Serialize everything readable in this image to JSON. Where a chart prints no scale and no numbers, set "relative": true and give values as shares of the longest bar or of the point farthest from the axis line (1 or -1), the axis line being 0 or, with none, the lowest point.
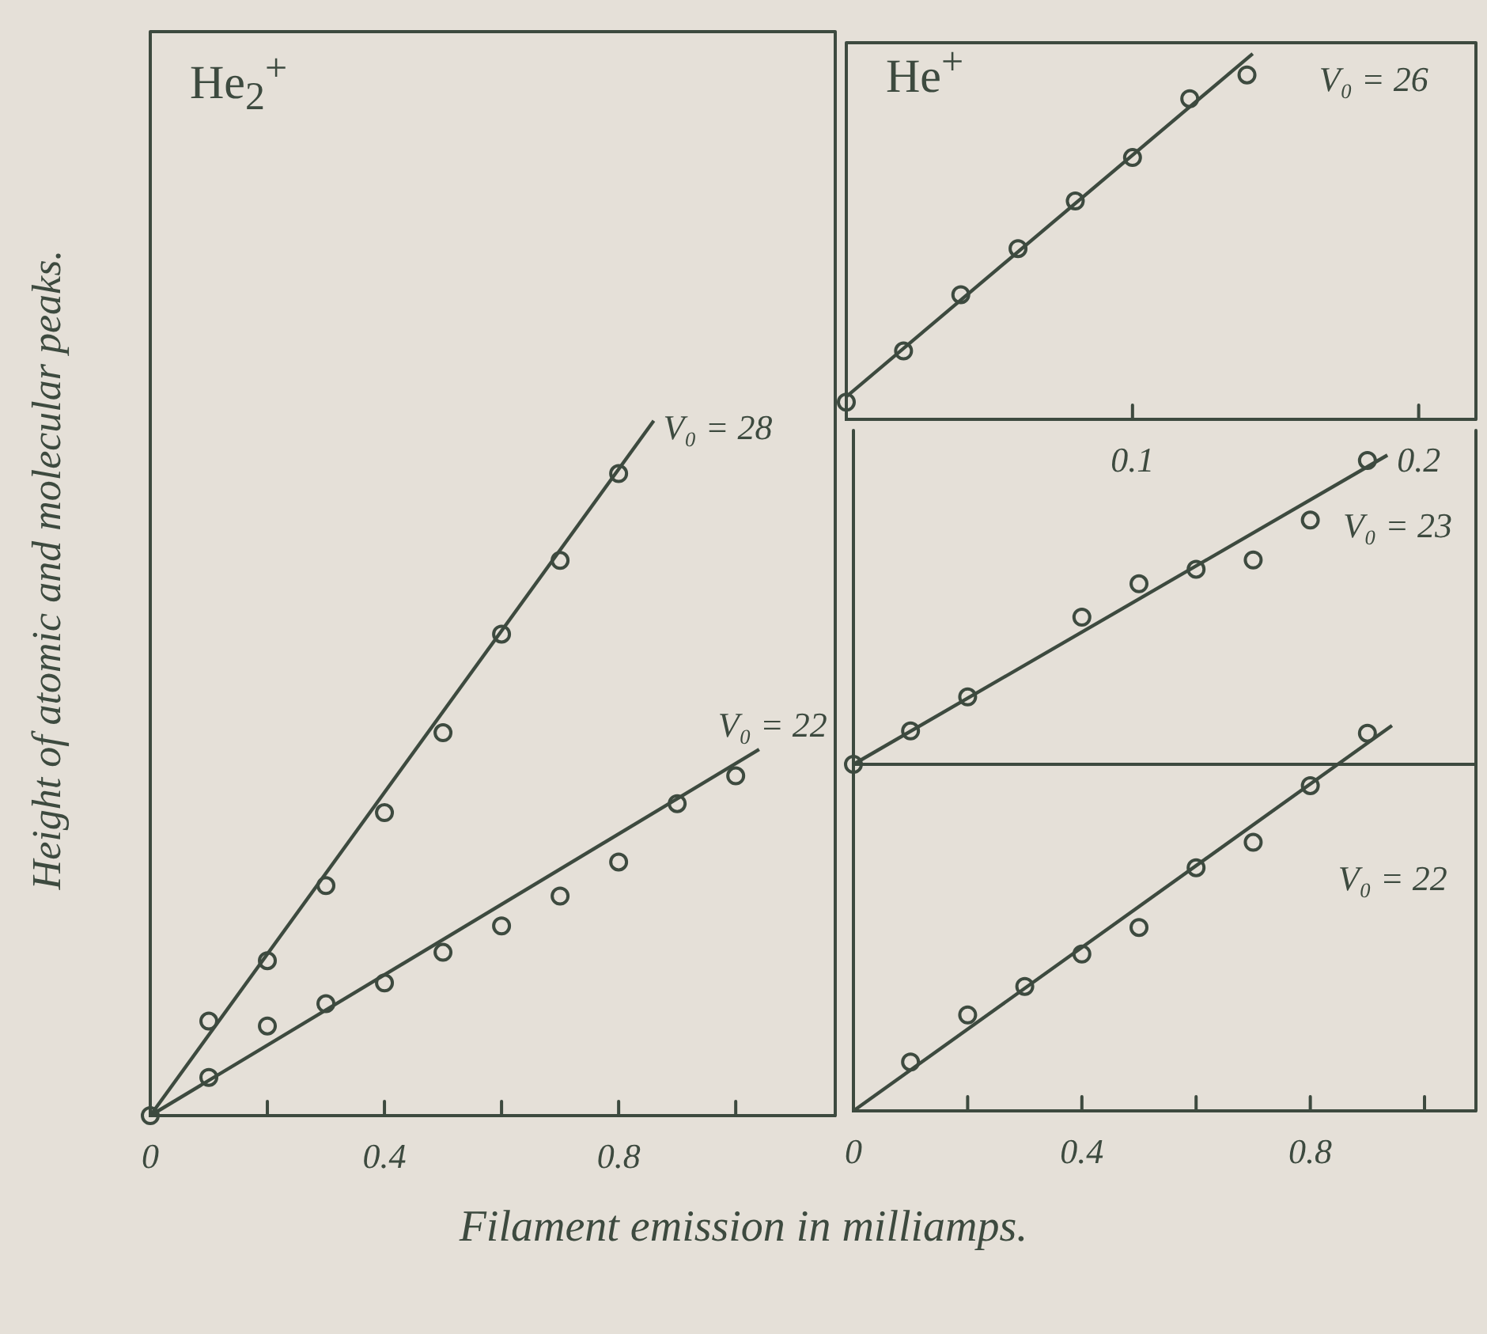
{
  "chart_data": [
    {
      "type": "scatter",
      "title": "He$_{2}$$^{+}$",
      "xlabel": "Filament emission in milliamps.",
      "ylabel": "Height of atomic and molecular peaks.",
      "relative": true,
      "marker": "circle",
      "xlim": [
        0,
        1.17
      ],
      "xticks": [
        0,
        {
          "value": 0.2,
          "label": null
        },
        0.4,
        {
          "value": 0.6,
          "label": null
        },
        0.8,
        {
          "value": 1.0,
          "label": null
        }
      ],
      "series": [
        {
          "color": "#3d4a3f",
          "x": [
            0,
            0.1,
            0.2,
            0.3,
            0.4,
            0.5,
            0.6,
            0.7,
            0.8
          ],
          "values": [
            0,
            0.136,
            0.223,
            0.331,
            0.436,
            0.551,
            0.693,
            0.799,
            0.924
          ]
        },
        {
          "name": "V₀ = 28",
          "type": "line",
          "marker": "none",
          "color": "#3d4a3f",
          "x": [
            0,
            0.86
          ],
          "values": [
            0,
            1
          ]
        },
        {
          "color": "#3d4a3f",
          "x": [
            0.1,
            0.2,
            0.3,
            0.4,
            0.5,
            0.6,
            0.7,
            0.8,
            0.9,
            1.0
          ],
          "values": [
            0.055,
            0.129,
            0.161,
            0.191,
            0.235,
            0.273,
            0.316,
            0.365,
            0.449,
            0.489
          ]
        },
        {
          "name": "V₀ = 22",
          "type": "line",
          "marker": "none",
          "color": "#3d4a3f",
          "x": [
            0,
            1.04
          ],
          "values": [
            0,
            0.527
          ]
        }
      ]
    },
    {
      "type": "scatter",
      "title": "He$^{+}$",
      "relative": true,
      "marker": "circle",
      "xlim": [
        0,
        0.22
      ],
      "xticks": [
        0.1,
        0.2
      ],
      "series": [
        {
          "color": "#3d4a3f",
          "x": [
            0,
            0.02,
            0.04,
            0.06,
            0.08,
            0.1,
            0.12,
            0.14
          ],
          "values": [
            0.047,
            0.187,
            0.341,
            0.467,
            0.597,
            0.716,
            0.877,
            0.942
          ]
        },
        {
          "name": "V₀ = 26",
          "type": "line",
          "marker": "none",
          "color": "#3d4a3f",
          "x": [
            0,
            0.142
          ],
          "values": [
            0.062,
            1
          ]
        }
      ]
    },
    {
      "type": "scatter",
      "relative": true,
      "marker": "circle",
      "xlim": [
        0,
        1.09
      ],
      "tick_labels": false,
      "xticks": [
        0,
        0.4,
        0.8
      ],
      "series": [
        {
          "color": "#3d4a3f",
          "x": [
            0,
            0.1,
            0.2,
            0.4,
            0.5,
            0.6,
            0.7,
            0.8,
            0.9
          ],
          "values": [
            0,
            0.108,
            0.218,
            0.476,
            0.584,
            0.631,
            0.661,
            0.79,
            0.983
          ]
        },
        {
          "name": "V₀ = 23",
          "type": "line",
          "marker": "none",
          "color": "#3d4a3f",
          "x": [
            0,
            0.935
          ],
          "values": [
            0,
            1
          ]
        }
      ]
    },
    {
      "type": "scatter",
      "relative": true,
      "marker": "circle",
      "xlim": [
        0,
        1.09
      ],
      "xticks": [
        0,
        {
          "value": 0.2,
          "label": null
        },
        0.4,
        {
          "value": 0.6,
          "label": null
        },
        0.8,
        {
          "value": 1.0,
          "label": null
        }
      ],
      "series": [
        {
          "color": "#3d4a3f",
          "x": [
            0.1,
            0.2,
            0.3,
            0.4,
            0.5,
            0.6,
            0.7,
            0.8,
            0.9
          ],
          "values": [
            0.127,
            0.249,
            0.323,
            0.407,
            0.476,
            0.631,
            0.697,
            0.844,
            0.98
          ]
        },
        {
          "name": "V₀ = 22",
          "type": "line",
          "marker": "none",
          "color": "#3d4a3f",
          "x": [
            0,
            0.943
          ],
          "values": [
            0,
            1
          ]
        }
      ]
    }
  ]
}
